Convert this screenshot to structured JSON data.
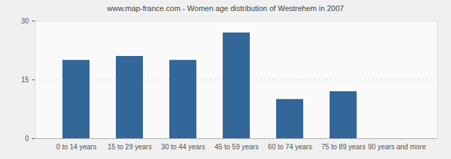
{
  "chart_data": {
    "type": "bar",
    "title": "www.map-france.com - Women age distribution of Westrehem in 2007",
    "categories": [
      "0 to 14 years",
      "15 to 29 years",
      "30 to 44 years",
      "45 to 59 years",
      "60 to 74 years",
      "75 to 89 years",
      "90 years and more"
    ],
    "values": [
      20,
      21,
      20,
      27,
      10,
      12,
      0
    ],
    "color": "#336699",
    "ylim": [
      0,
      30
    ],
    "yticks": [
      0,
      15,
      30
    ],
    "grid": true
  }
}
